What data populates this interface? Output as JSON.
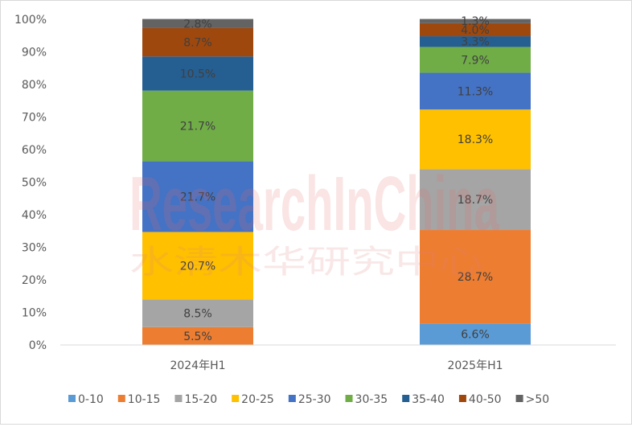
{
  "chart_data": {
    "type": "bar",
    "stacked": true,
    "categories": [
      "2024年H1",
      "2025年H1"
    ],
    "y_ticks": [
      "0%",
      "10%",
      "20%",
      "30%",
      "40%",
      "50%",
      "60%",
      "70%",
      "80%",
      "90%",
      "100%"
    ],
    "ylim": [
      0,
      100
    ],
    "legend_position": "bottom",
    "grid": false,
    "series": [
      {
        "name": "0-10",
        "color": "#5b9bd5",
        "values": [
          0.0,
          6.6
        ],
        "labels": [
          "",
          "6.6%"
        ]
      },
      {
        "name": "10-15",
        "color": "#ed7d31",
        "values": [
          5.5,
          28.7
        ],
        "labels": [
          "5.5%",
          "28.7%"
        ]
      },
      {
        "name": "15-20",
        "color": "#a5a5a5",
        "values": [
          8.5,
          18.7
        ],
        "labels": [
          "8.5%",
          "18.7%"
        ]
      },
      {
        "name": "20-25",
        "color": "#ffc000",
        "values": [
          20.7,
          18.3
        ],
        "labels": [
          "20.7%",
          "18.3%"
        ]
      },
      {
        "name": "25-30",
        "color": "#4472c4",
        "values": [
          21.7,
          11.3
        ],
        "labels": [
          "21.7%",
          "11.3%"
        ]
      },
      {
        "name": "30-35",
        "color": "#70ad47",
        "values": [
          21.7,
          7.9
        ],
        "labels": [
          "21.7%",
          "7.9%"
        ]
      },
      {
        "name": "35-40",
        "color": "#255e91",
        "values": [
          10.5,
          3.3
        ],
        "labels": [
          "10.5%",
          "3.3%"
        ]
      },
      {
        "name": "40-50",
        "color": "#9e480e",
        "values": [
          8.7,
          4.0
        ],
        "labels": [
          "8.7%",
          "4.0%"
        ]
      },
      {
        "name": ">50",
        "color": "#636363",
        "values": [
          2.8,
          1.3
        ],
        "labels": [
          "2.8%",
          "1.3%"
        ]
      }
    ]
  },
  "watermark": {
    "line1": "ResearchInChina",
    "line2": "水清木华研究中心"
  }
}
